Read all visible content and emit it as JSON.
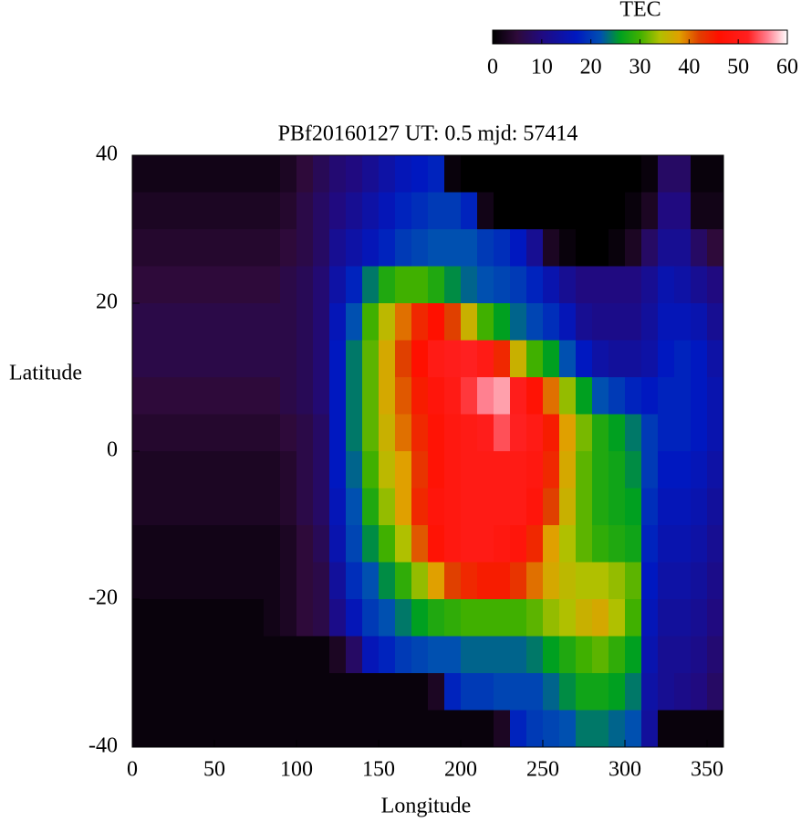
{
  "chart_data": {
    "type": "heatmap",
    "title": "PBf20160127  UT: 0.5  mjd: 57414",
    "xlabel": "Longitude",
    "ylabel": "Latitude",
    "xlim": [
      0,
      360
    ],
    "ylim": [
      -40,
      40
    ],
    "xticks": [
      0,
      50,
      100,
      150,
      200,
      250,
      300,
      350
    ],
    "yticks": [
      -40,
      -20,
      0,
      20,
      40
    ],
    "x": [
      5,
      15,
      25,
      35,
      45,
      55,
      65,
      75,
      85,
      95,
      105,
      115,
      125,
      135,
      145,
      155,
      165,
      175,
      185,
      195,
      205,
      215,
      225,
      235,
      245,
      255,
      265,
      275,
      285,
      295,
      305,
      315,
      325,
      335,
      345,
      355
    ],
    "y": [
      37.5,
      32.5,
      27.5,
      22.5,
      17.5,
      12.5,
      7.5,
      2.5,
      -2.5,
      -7.5,
      -12.5,
      -17.5,
      -22.5,
      -27.5,
      -32.5,
      -37.5
    ],
    "z": [
      [
        2,
        2,
        2,
        2,
        2,
        2,
        2,
        2,
        2,
        3,
        5,
        7,
        9,
        10,
        12,
        14,
        16,
        17,
        18,
        1,
        0,
        0,
        0,
        0,
        0,
        0,
        0,
        0,
        0,
        0,
        0,
        1,
        8,
        8,
        1,
        1
      ],
      [
        3,
        3,
        3,
        3,
        3,
        3,
        3,
        3,
        3,
        4,
        6,
        8,
        10,
        12,
        14,
        16,
        18,
        19,
        20,
        20,
        18,
        2,
        0,
        0,
        0,
        0,
        0,
        0,
        0,
        0,
        1,
        3,
        10,
        10,
        2,
        2
      ],
      [
        4,
        4,
        4,
        4,
        4,
        4,
        4,
        4,
        4,
        5,
        6,
        8,
        12,
        14,
        16,
        18,
        20,
        21,
        22,
        22,
        22,
        20,
        19,
        17,
        12,
        3,
        1,
        0,
        0,
        1,
        3,
        8,
        12,
        12,
        8,
        5
      ],
      [
        5,
        5,
        5,
        5,
        5,
        5,
        5,
        5,
        5,
        6,
        7,
        9,
        14,
        18,
        24,
        28,
        30,
        30,
        28,
        25,
        23,
        22,
        21,
        20,
        18,
        15,
        12,
        10,
        10,
        10,
        10,
        12,
        15,
        14,
        12,
        10
      ],
      [
        6,
        6,
        6,
        6,
        6,
        6,
        6,
        6,
        6,
        6,
        7,
        9,
        16,
        22,
        30,
        35,
        40,
        44,
        46,
        42,
        36,
        30,
        26,
        23,
        21,
        19,
        16,
        12,
        11,
        11,
        11,
        13,
        16,
        16,
        15,
        12
      ],
      [
        6,
        6,
        6,
        6,
        6,
        6,
        6,
        6,
        6,
        6,
        7,
        9,
        17,
        24,
        31,
        37,
        42,
        46,
        50,
        51,
        52,
        50,
        44,
        36,
        30,
        26,
        22,
        17,
        14,
        13,
        13,
        14,
        17,
        18,
        17,
        14
      ],
      [
        5,
        5,
        5,
        5,
        5,
        5,
        5,
        5,
        5,
        6,
        7,
        9,
        17,
        24,
        31,
        37,
        41,
        45,
        48,
        50,
        53,
        56,
        57,
        51,
        47,
        40,
        33,
        26,
        22,
        20,
        18,
        17,
        18,
        18,
        17,
        15
      ],
      [
        4,
        4,
        4,
        4,
        4,
        4,
        4,
        4,
        4,
        5,
        6,
        8,
        17,
        24,
        31,
        36,
        40,
        44,
        47,
        49,
        50,
        51,
        54,
        52,
        50,
        45,
        38,
        32,
        28,
        26,
        24,
        20,
        18,
        18,
        17,
        15
      ],
      [
        3,
        3,
        3,
        3,
        3,
        3,
        3,
        3,
        3,
        4,
        6,
        8,
        17,
        23,
        30,
        35,
        38,
        43,
        47,
        49,
        50,
        50,
        50,
        50,
        49,
        44,
        37,
        31,
        28,
        27,
        25,
        20,
        17,
        17,
        16,
        14
      ],
      [
        3,
        3,
        3,
        3,
        3,
        3,
        3,
        3,
        3,
        4,
        6,
        8,
        16,
        22,
        28,
        33,
        38,
        44,
        48,
        49,
        50,
        50,
        50,
        50,
        48,
        42,
        36,
        31,
        28,
        27,
        26,
        19,
        16,
        16,
        15,
        13
      ],
      [
        2,
        2,
        2,
        2,
        2,
        2,
        2,
        2,
        2,
        3,
        5,
        7,
        15,
        21,
        25,
        30,
        34,
        41,
        47,
        49,
        50,
        50,
        49,
        48,
        44,
        38,
        34,
        31,
        29,
        28,
        27,
        18,
        15,
        15,
        14,
        12
      ],
      [
        2,
        2,
        2,
        2,
        2,
        2,
        2,
        2,
        2,
        3,
        5,
        6,
        13,
        19,
        22,
        25,
        29,
        33,
        38,
        42,
        44,
        45,
        45,
        43,
        40,
        37,
        35,
        34,
        34,
        33,
        31,
        17,
        14,
        14,
        13,
        11
      ],
      [
        1,
        1,
        1,
        1,
        1,
        1,
        1,
        1,
        2,
        3,
        5,
        6,
        11,
        16,
        20,
        22,
        24,
        26,
        28,
        29,
        30,
        30,
        30,
        30,
        31,
        33,
        34,
        36,
        37,
        34,
        30,
        16,
        13,
        13,
        12,
        10
      ],
      [
        1,
        1,
        1,
        1,
        1,
        1,
        1,
        1,
        1,
        1,
        1,
        1,
        3,
        8,
        16,
        18,
        20,
        21,
        22,
        22,
        23,
        23,
        23,
        23,
        24,
        26,
        28,
        30,
        31,
        29,
        26,
        15,
        12,
        12,
        11,
        9
      ],
      [
        1,
        1,
        1,
        1,
        1,
        1,
        1,
        1,
        1,
        1,
        1,
        1,
        1,
        1,
        1,
        1,
        1,
        1,
        3,
        18,
        20,
        20,
        21,
        21,
        21,
        23,
        25,
        27,
        27,
        26,
        24,
        14,
        12,
        11,
        10,
        8
      ],
      [
        1,
        1,
        1,
        1,
        1,
        1,
        1,
        1,
        1,
        1,
        1,
        1,
        1,
        1,
        1,
        1,
        1,
        1,
        1,
        1,
        1,
        1,
        3,
        18,
        20,
        21,
        22,
        24,
        24,
        23,
        22,
        13,
        1,
        1,
        1,
        1
      ]
    ],
    "colorscale": [
      [
        0,
        "#000000"
      ],
      [
        5,
        "#2e0a3a"
      ],
      [
        10,
        "#200a80"
      ],
      [
        17,
        "#0018c0"
      ],
      [
        22,
        "#0050b0"
      ],
      [
        26,
        "#00a020"
      ],
      [
        30,
        "#40b000"
      ],
      [
        34,
        "#b0c000"
      ],
      [
        38,
        "#e0a000"
      ],
      [
        42,
        "#e04000"
      ],
      [
        46,
        "#ff1000"
      ],
      [
        52,
        "#ff2020"
      ],
      [
        56,
        "#ff8090"
      ],
      [
        60,
        "#ffffff"
      ]
    ],
    "colorbar": {
      "label": "TEC",
      "lim": [
        0,
        60
      ],
      "ticks": [
        0,
        10,
        20,
        30,
        40,
        50,
        60
      ]
    }
  }
}
